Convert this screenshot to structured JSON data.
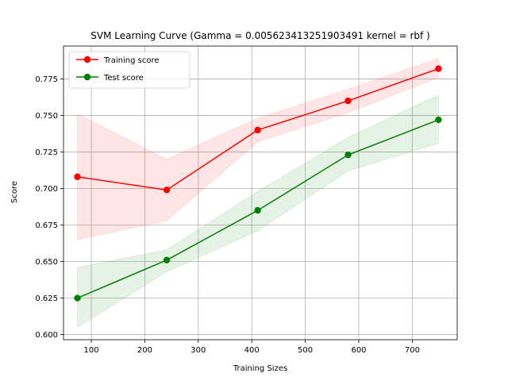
{
  "chart_data": {
    "type": "line",
    "title": "SVM Learning Curve (Gamma = 0.005623413251903491 kernel =  rbf )",
    "xlabel": "Training Sizes",
    "ylabel": "Score",
    "xlim": [
      48,
      784
    ],
    "ylim": [
      0.5965,
      0.7975
    ],
    "xticks": [
      100,
      200,
      300,
      400,
      500,
      600,
      700
    ],
    "yticks": [
      0.6,
      0.625,
      0.65,
      0.675,
      0.7,
      0.725,
      0.75,
      0.775
    ],
    "ytick_labels": [
      "0.600",
      "0.625",
      "0.650",
      "0.675",
      "0.700",
      "0.725",
      "0.750",
      "0.775"
    ],
    "grid": true,
    "legend_position": "upper-left",
    "x": [
      74,
      241,
      411,
      580,
      749
    ],
    "series": [
      {
        "name": "Training score",
        "color": "#ff0000",
        "band_color": "#ff0000",
        "values": [
          0.708,
          0.699,
          0.74,
          0.76,
          0.782
        ],
        "band_upper": [
          0.751,
          0.72,
          0.748,
          0.768,
          0.789
        ],
        "band_lower": [
          0.665,
          0.678,
          0.732,
          0.752,
          0.776
        ]
      },
      {
        "name": "Test score",
        "color": "#008000",
        "band_color": "#008000",
        "values": [
          0.625,
          0.651,
          0.685,
          0.723,
          0.747
        ],
        "band_upper": [
          0.646,
          0.658,
          0.698,
          0.735,
          0.764
        ],
        "band_lower": [
          0.605,
          0.643,
          0.671,
          0.712,
          0.731
        ]
      }
    ]
  }
}
